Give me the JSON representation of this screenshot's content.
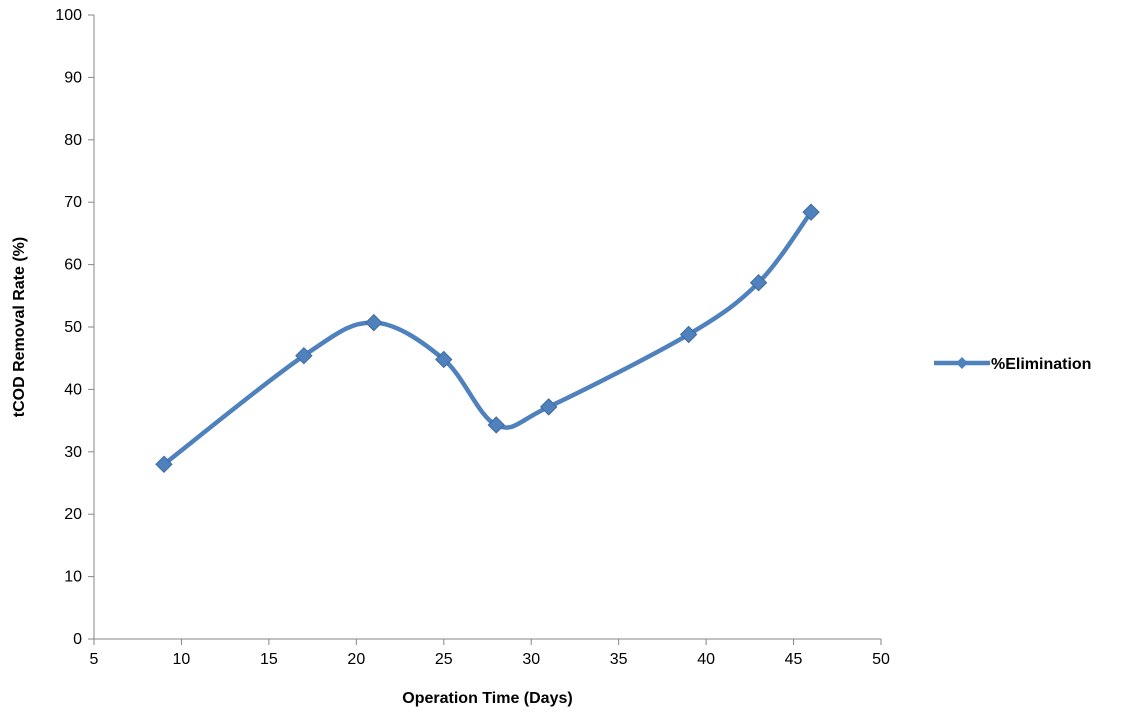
{
  "chart_data": {
    "type": "line",
    "title": "",
    "xlabel": "Operation  Time (Days)",
    "ylabel": "tCOD Removal Rate (%)",
    "xlim": [
      5,
      50
    ],
    "ylim": [
      0,
      100
    ],
    "xticks": [
      5,
      10,
      15,
      20,
      25,
      30,
      35,
      40,
      45,
      50
    ],
    "yticks": [
      0,
      10,
      20,
      30,
      40,
      50,
      60,
      70,
      80,
      90,
      100
    ],
    "grid": false,
    "legend_position": "right",
    "series": [
      {
        "name": "%Elimination",
        "color": "#4F81BD",
        "marker": "diamond",
        "smooth": true,
        "x": [
          9,
          17,
          21,
          25,
          28,
          31,
          39,
          43,
          46
        ],
        "y": [
          28,
          45.4,
          50.7,
          44.8,
          34.3,
          37.2,
          48.8,
          57.1,
          68.4
        ]
      }
    ]
  }
}
